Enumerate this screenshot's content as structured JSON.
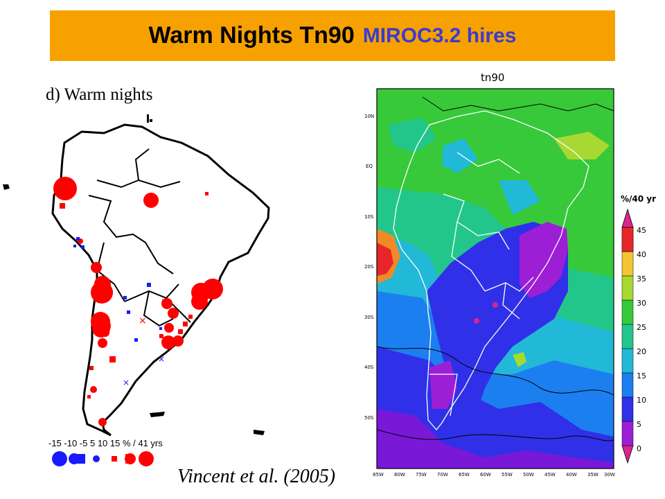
{
  "title": {
    "main": "Warm Nights Tn90",
    "model": "MIROC3.2 hires",
    "bg_color": "#f7a100",
    "model_color": "#3b3bcf"
  },
  "left_panel": {
    "heading": "d) Warm nights",
    "legend_text": "-15 -10  -5    5   10  15 % / 41 yrs",
    "legend_values": [
      -15,
      -10,
      -5,
      5,
      10,
      15
    ],
    "units": "% / 41 yrs",
    "citation": "Vincent et al. (2005)",
    "colors": {
      "negative": "#1a1aff",
      "positive": "#ff0000"
    }
  },
  "right_panel": {
    "title": "tn90",
    "units": "%/40 yr",
    "lat_labels": [
      "10N",
      "EQ",
      "10S",
      "20S",
      "30S",
      "40S",
      "50S"
    ],
    "lon_labels": [
      "85W",
      "80W",
      "75W",
      "70W",
      "65W",
      "60W",
      "55W",
      "50W",
      "45W",
      "40W",
      "35W",
      "30W"
    ],
    "colorbar_levels": [
      "0",
      "5",
      "10",
      "15",
      "20",
      "25",
      "30",
      "35",
      "40",
      "45"
    ],
    "colorbar_colors": [
      "#9c1fd6",
      "#7a18d8",
      "#3030e8",
      "#1c7ff0",
      "#22b8d8",
      "#23c68a",
      "#37c93a",
      "#a8d832",
      "#f3c631",
      "#f08a26",
      "#e8262a",
      "#d8268c"
    ]
  }
}
